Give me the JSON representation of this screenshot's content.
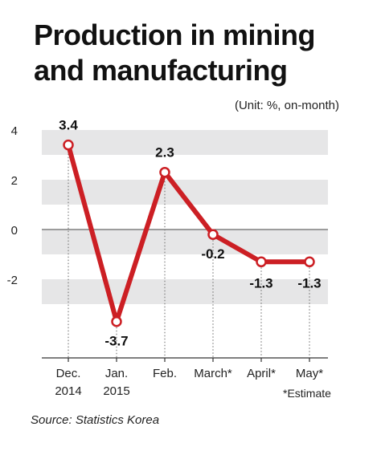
{
  "chart_data": {
    "type": "line",
    "title": [
      "Production in mining",
      "and manufacturing"
    ],
    "unit": "(Unit: %, on-month)",
    "categories": [
      [
        "Dec.",
        "2014"
      ],
      [
        "Jan.",
        "2015"
      ],
      [
        "Feb."
      ],
      [
        "March*"
      ],
      [
        "April*"
      ],
      [
        "May*"
      ]
    ],
    "values": [
      3.4,
      -3.7,
      2.3,
      -0.2,
      -1.3,
      -1.3
    ],
    "value_labels": [
      "3.4",
      "-3.7",
      "2.3",
      "-0.2",
      "-1.3",
      "-1.3"
    ],
    "y_ticks": [
      4,
      2,
      0,
      -2
    ],
    "ylim": [
      -5,
      4.5
    ],
    "note": "*Estimate",
    "source": "Source: Statistics Korea",
    "colors": {
      "line": "#cc1f24",
      "band": "#e6e6e7",
      "marker_fill": "#ffffff"
    }
  }
}
